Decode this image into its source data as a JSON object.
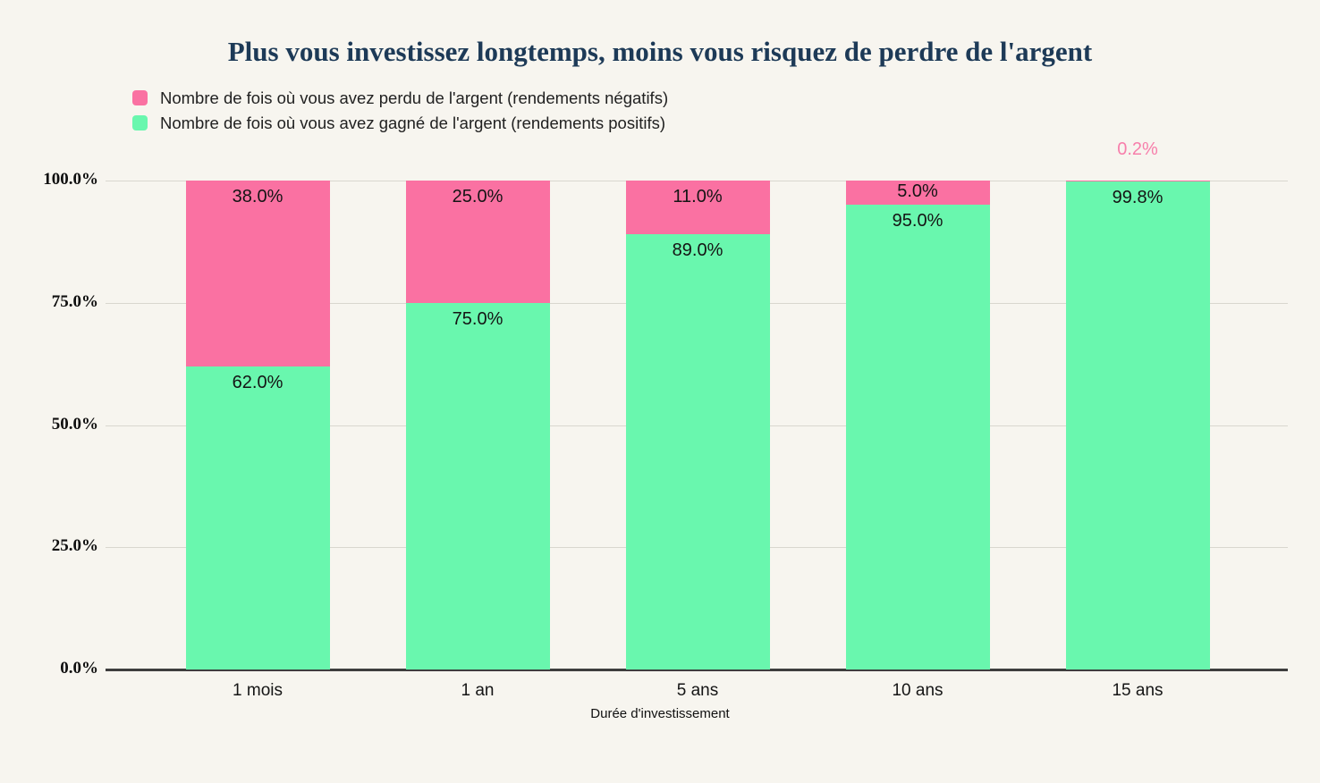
{
  "page": {
    "background_color": "#F7F5EF"
  },
  "title": {
    "color": "#1D3A57"
  },
  "legend": {
    "items": [
      {
        "label": "Nombre de fois où vous avez perdu de l'argent (rendements négatifs)",
        "color": "#FA71A2",
        "series": "lost"
      },
      {
        "label": "Nombre de fois où vous avez gagné de l'argent (rendements positifs)",
        "color": "#69F7AE",
        "series": "gained"
      }
    ]
  },
  "chart_data": {
    "type": "bar",
    "stacked": true,
    "title": "Plus vous investissez longtemps, moins vous risquez de perdre de l'argent",
    "xlabel": "Durée d'investissement",
    "ylabel": "",
    "categories": [
      "1 mois",
      "1 an",
      "5 ans",
      "10 ans",
      "15 ans"
    ],
    "series": [
      {
        "name": "Nombre de fois où vous avez gagné de l'argent (rendements positifs)",
        "color": "#69F7AE",
        "values": [
          62.0,
          75.0,
          89.0,
          95.0,
          99.8
        ],
        "labels": [
          "62.0%",
          "75.0%",
          "89.0%",
          "95.0%",
          "99.8%"
        ]
      },
      {
        "name": "Nombre de fois où vous avez perdu de l'argent (rendements négatifs)",
        "color": "#FA71A2",
        "values": [
          38.0,
          25.0,
          11.0,
          5.0,
          0.2
        ],
        "labels": [
          "38.0%",
          "25.0%",
          "11.0%",
          "5.0%",
          "0.2%"
        ]
      }
    ],
    "ylim": [
      0,
      100
    ],
    "yticks": {
      "values": [
        0,
        25,
        50,
        75,
        100
      ],
      "labels": [
        "0.0%",
        "25.0%",
        "50.0%",
        "75.0%",
        "100.0%"
      ]
    },
    "grid": true,
    "legend_position": "top-left",
    "colors": {
      "title": "#1D3A57",
      "gridline": "#D9D7CF",
      "axis_line": "#3E3E3E",
      "value_label": "#141414",
      "outside_value_label": "#F77FAB",
      "background": "#F7F5EF"
    },
    "outside_label": {
      "category": "15 ans",
      "series": "lost",
      "text": "0.2%"
    }
  }
}
